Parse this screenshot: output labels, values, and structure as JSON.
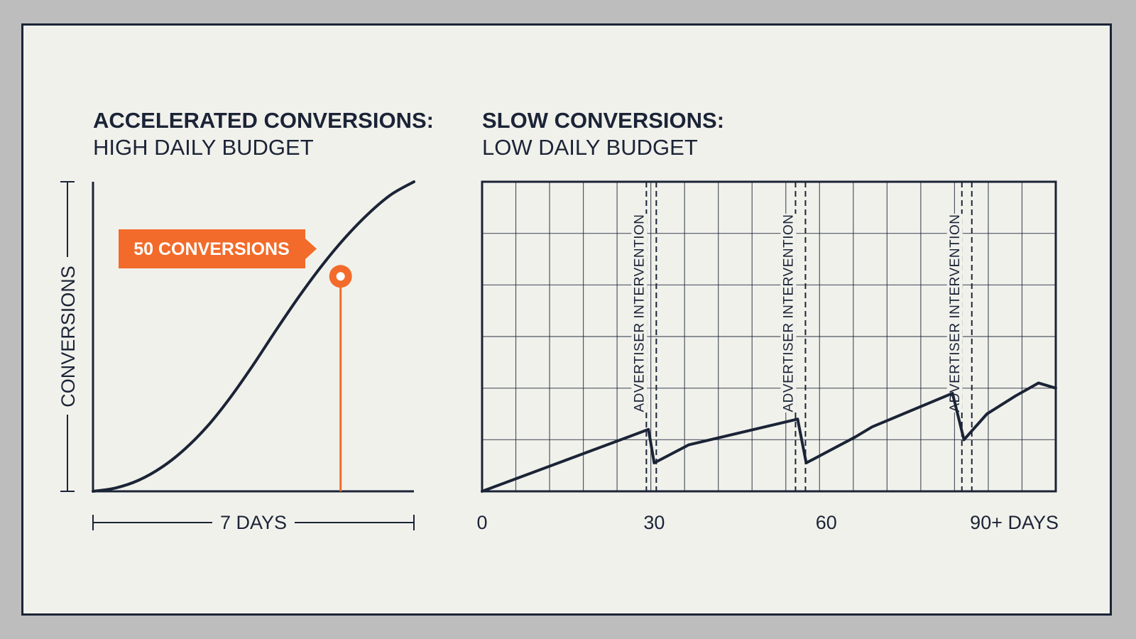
{
  "colors": {
    "ink": "#1b2436",
    "accent": "#f26b2a",
    "background": "#f1f1ec",
    "outer": "#bdbdbd",
    "grid": "#1b2436"
  },
  "chart_data": [
    {
      "type": "line",
      "title": "ACCELERATED CONVERSIONS:",
      "subtitle": "HIGH DAILY BUDGET",
      "xlabel": "7 DAYS",
      "ylabel": "CONVERSIONS",
      "grid": false,
      "x": [
        0,
        0.5,
        1,
        1.5,
        2,
        2.5,
        3,
        3.5,
        4,
        4.5,
        5,
        5.5,
        6,
        6.5,
        7
      ],
      "series": [
        {
          "values": [
            0,
            0.8,
            2.6,
            5.6,
            9.8,
            15.2,
            21.9,
            29.5,
            37.6,
            45.4,
            52.6,
            59.0,
            64.5,
            69.0,
            72
          ]
        }
      ],
      "xlim": [
        0,
        7
      ],
      "ylim": [
        0,
        72
      ],
      "annotation": {
        "label": "50 CONVERSIONS",
        "x": 5.4,
        "y": 50
      }
    },
    {
      "type": "line",
      "title": "SLOW CONVERSIONS:",
      "subtitle": "LOW DAILY BUDGET",
      "grid": true,
      "x_ticks": [
        {
          "value": 0,
          "label": "0"
        },
        {
          "value": 30,
          "label": "30"
        },
        {
          "value": 60,
          "label": "60"
        },
        {
          "value": 90,
          "label": "90+ DAYS"
        }
      ],
      "xlim": [
        0,
        100
      ],
      "ylim": [
        0,
        6
      ],
      "x": [
        0,
        29,
        30,
        36,
        55,
        56.5,
        65,
        68,
        82,
        84,
        88,
        93,
        97,
        100
      ],
      "series": [
        {
          "values": [
            0,
            1.2,
            0.55,
            0.9,
            1.4,
            0.55,
            1.05,
            1.25,
            1.9,
            1.0,
            1.5,
            1.85,
            2.1,
            2.0
          ]
        }
      ],
      "interventions": [
        {
          "x": 29.5,
          "label": "ADVERTISER INTERVENTION"
        },
        {
          "x": 55.5,
          "label": "ADVERTISER INTERVENTION"
        },
        {
          "x": 84.5,
          "label": "ADVERTISER INTERVENTION"
        }
      ]
    }
  ]
}
